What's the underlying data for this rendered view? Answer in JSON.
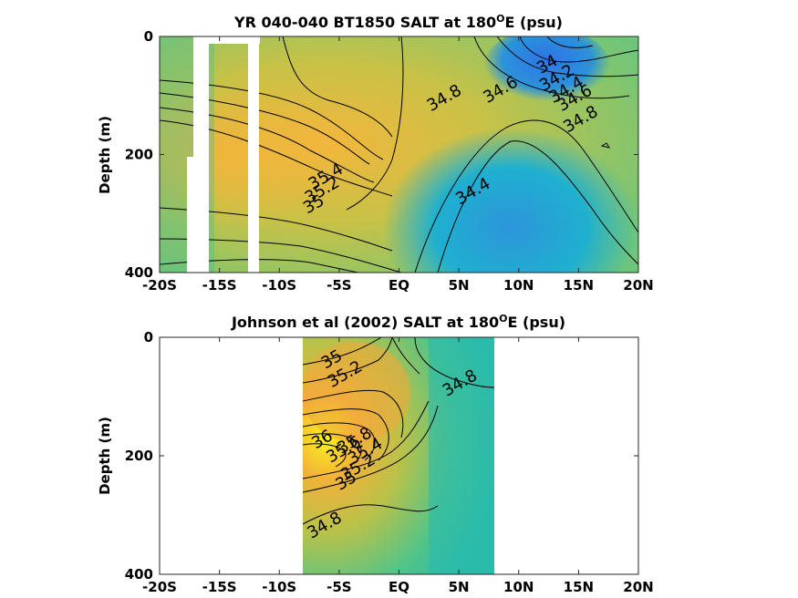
{
  "chart_data": [
    {
      "type": "heatmap",
      "title_main": "YR 040-040 BT1850 SALT at 180",
      "title_sup": "O",
      "title_end": "E (psu)",
      "ylabel": "Depth (m)",
      "xlim": [
        -20,
        20
      ],
      "ylim": [
        0,
        400
      ],
      "y_reversed": true,
      "x_ticks": [
        {
          "v": -20,
          "label": "-20S"
        },
        {
          "v": -15,
          "label": "-15S"
        },
        {
          "v": -10,
          "label": "-10S"
        },
        {
          "v": -5,
          "label": "-5S"
        },
        {
          "v": 0,
          "label": "EQ"
        },
        {
          "v": 5,
          "label": "5N"
        },
        {
          "v": 10,
          "label": "10N"
        },
        {
          "v": 15,
          "label": "15N"
        },
        {
          "v": 20,
          "label": "20N"
        }
      ],
      "y_ticks": [
        {
          "v": 0,
          "label": "0"
        },
        {
          "v": 200,
          "label": "200"
        },
        {
          "v": 400,
          "label": "400"
        }
      ],
      "contour_labels": [
        {
          "text": "34",
          "x": 12.6,
          "depth": 55
        },
        {
          "text": "34.2",
          "x": 13.4,
          "depth": 78
        },
        {
          "text": "34.4",
          "x": 14.2,
          "depth": 98
        },
        {
          "text": "34.6",
          "x": 14.9,
          "depth": 112
        },
        {
          "text": "34.8",
          "x": 15.4,
          "depth": 148
        },
        {
          "text": "34.8",
          "x": 4.0,
          "depth": 112
        },
        {
          "text": "34.6",
          "x": 8.7,
          "depth": 98
        },
        {
          "text": "35.4",
          "x": -5.9,
          "depth": 245
        },
        {
          "text": "35.2",
          "x": -6.2,
          "depth": 268
        },
        {
          "text": "35",
          "x": -6.9,
          "depth": 292
        },
        {
          "text": "34.4",
          "x": 6.4,
          "depth": 270
        }
      ]
    },
    {
      "type": "heatmap",
      "title_main": "Johnson et al (2002) SALT at 180",
      "title_sup": "O",
      "title_end": "E (psu)",
      "ylabel": "Depth (m)",
      "xlim": [
        -20,
        20
      ],
      "ylim": [
        0,
        400
      ],
      "y_reversed": true,
      "data_x_range": [
        -8,
        8
      ],
      "x_ticks": [
        {
          "v": -20,
          "label": "-20S"
        },
        {
          "v": -15,
          "label": "-15S"
        },
        {
          "v": -10,
          "label": "-10S"
        },
        {
          "v": -5,
          "label": "-5S"
        },
        {
          "v": 0,
          "label": "EQ"
        },
        {
          "v": 5,
          "label": "5N"
        },
        {
          "v": 10,
          "label": "10N"
        },
        {
          "v": 15,
          "label": "15N"
        },
        {
          "v": 20,
          "label": "20N"
        }
      ],
      "y_ticks": [
        {
          "v": 0,
          "label": "0"
        },
        {
          "v": 200,
          "label": "200"
        },
        {
          "v": 400,
          "label": "400"
        }
      ],
      "contour_labels": [
        {
          "text": "35",
          "x": -5.4,
          "depth": 45
        },
        {
          "text": "35.2",
          "x": -4.3,
          "depth": 70
        },
        {
          "text": "34.8",
          "x": 5.3,
          "depth": 85
        },
        {
          "text": "36",
          "x": -6.2,
          "depth": 180
        },
        {
          "text": "35.8",
          "x": -3.5,
          "depth": 182
        },
        {
          "text": "35.6",
          "x": -4.4,
          "depth": 197
        },
        {
          "text": "35.4",
          "x": -2.6,
          "depth": 200
        },
        {
          "text": "35.2",
          "x": -3.2,
          "depth": 227
        },
        {
          "text": "35",
          "x": -4.2,
          "depth": 250
        },
        {
          "text": "34.8",
          "x": -6.0,
          "depth": 325
        }
      ]
    }
  ]
}
